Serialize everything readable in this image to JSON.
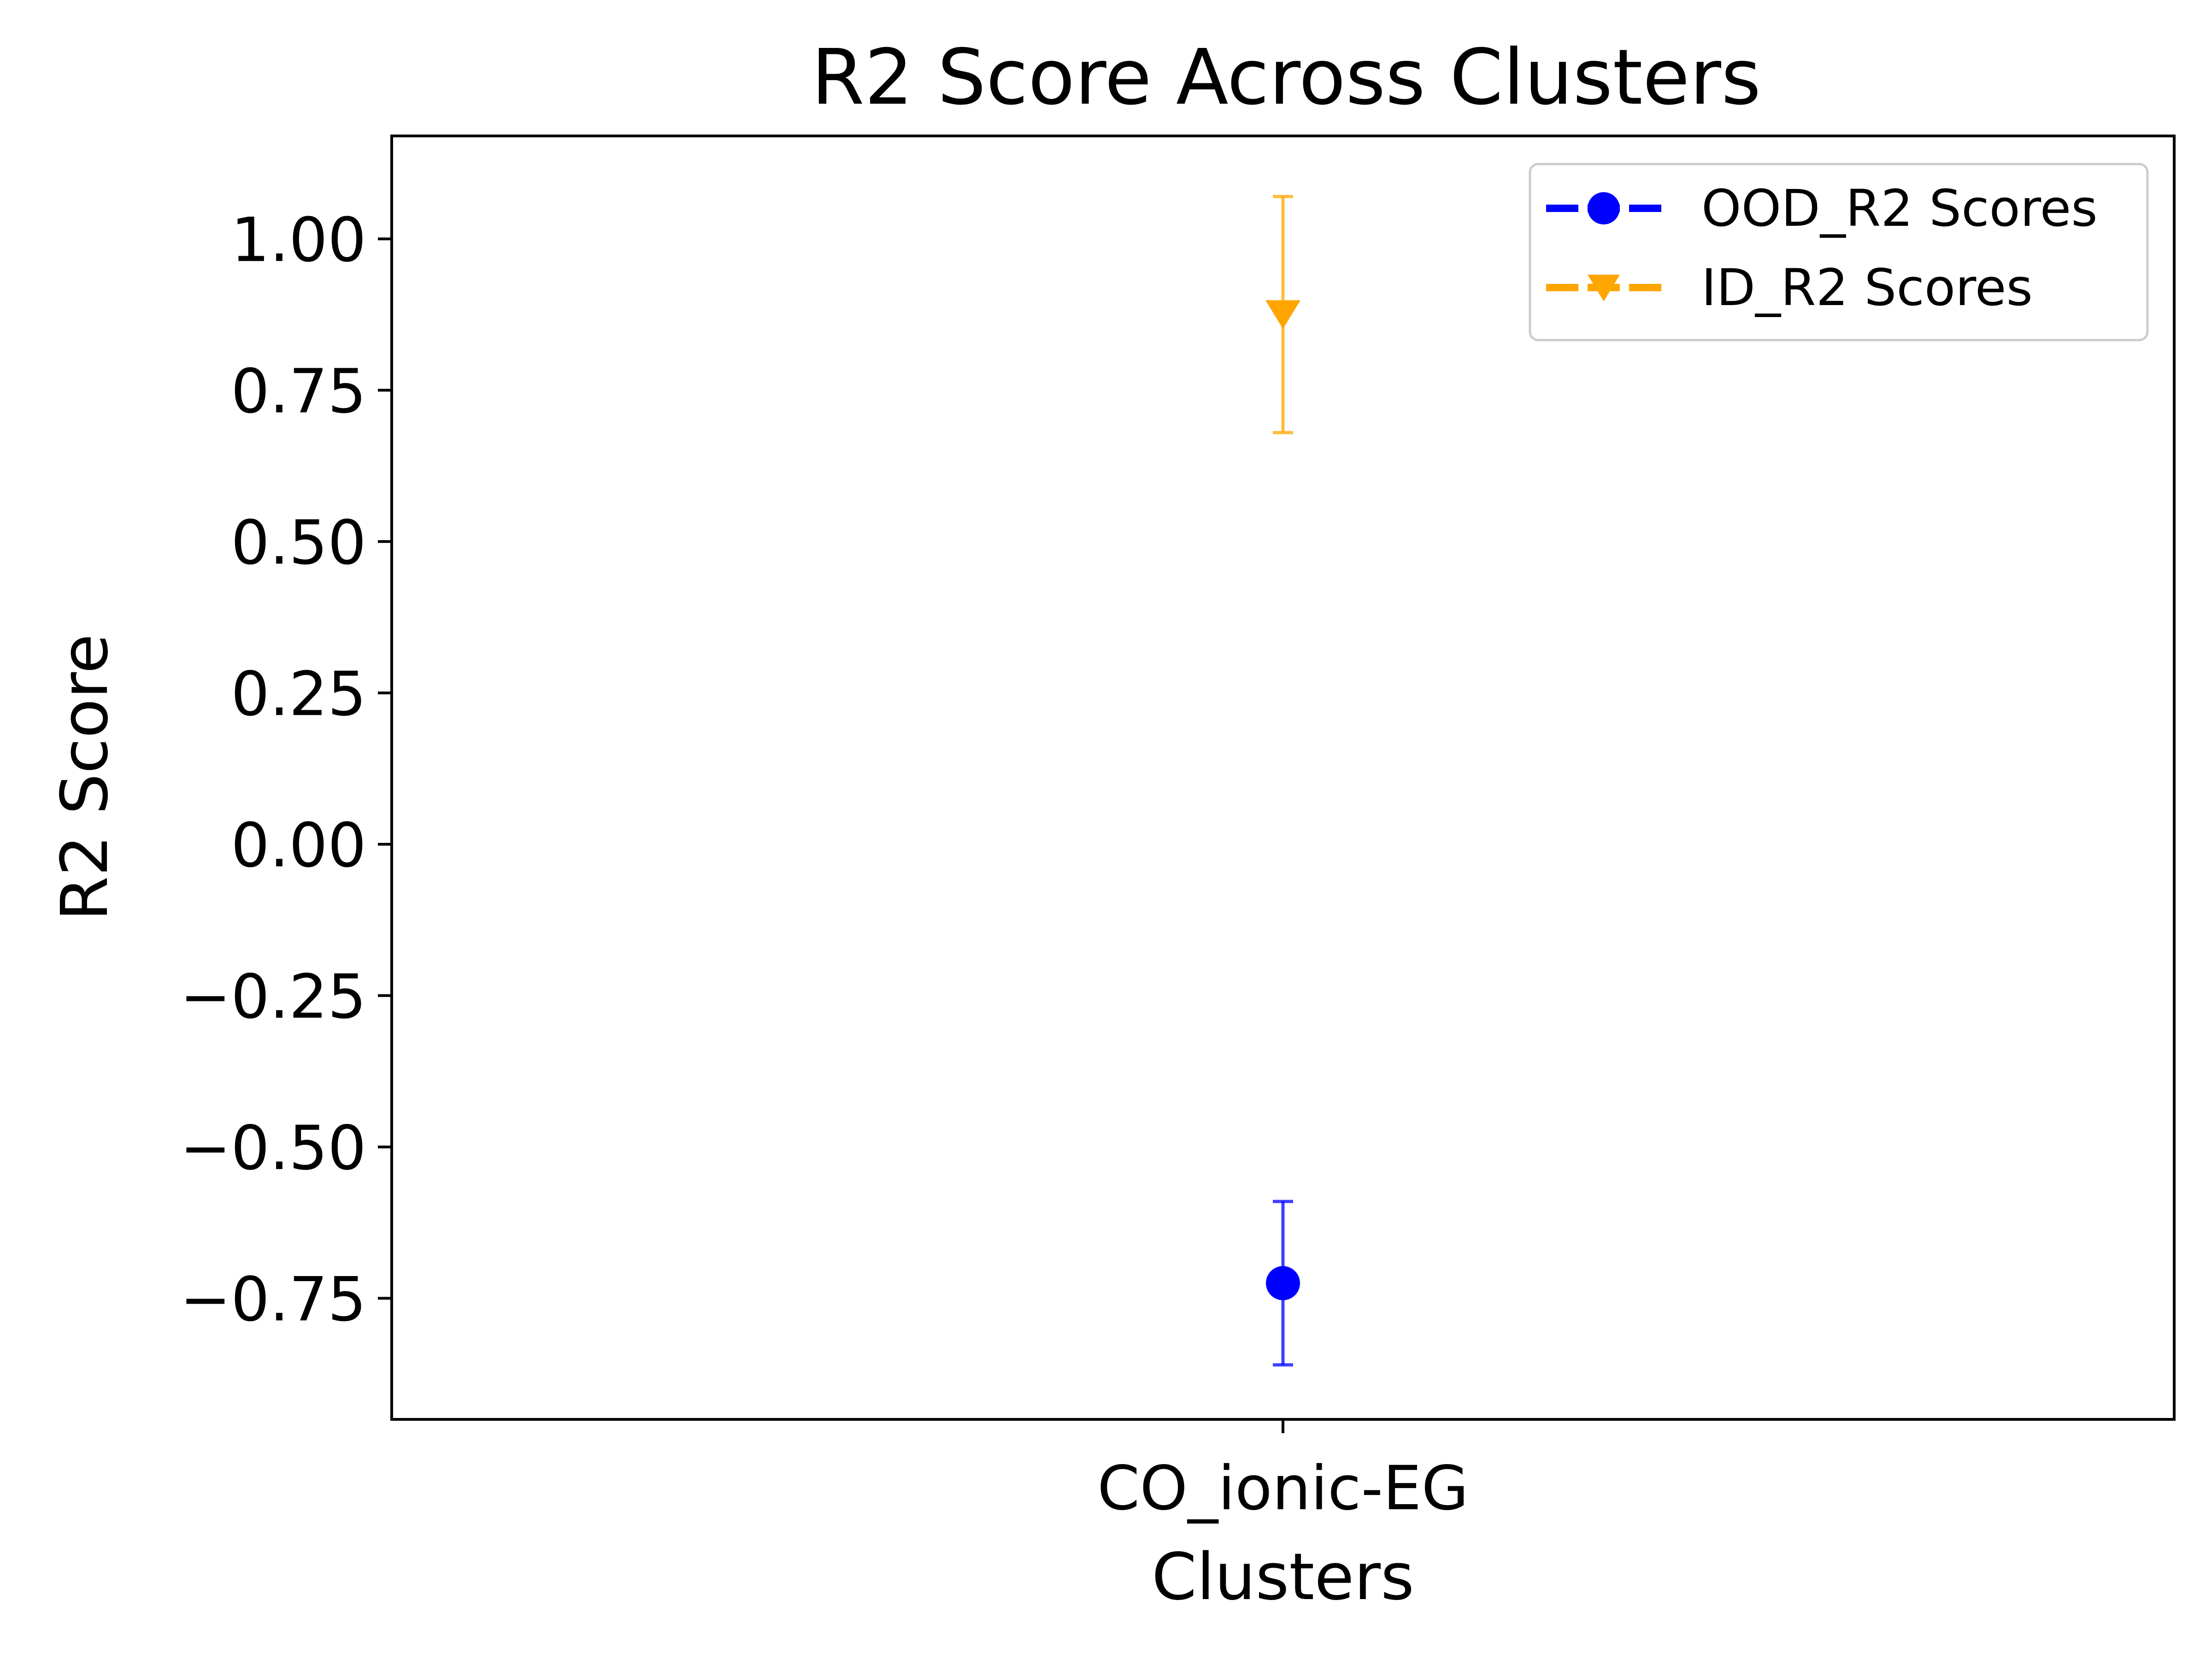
{
  "chart_data": {
    "type": "scatter",
    "title": "R2 Score Across Clusters",
    "xlabel": "Clusters",
    "ylabel": "R2 Score",
    "categories": [
      "CO_ionic-EG"
    ],
    "ylim": [
      -0.95,
      1.17
    ],
    "yticks": [
      -0.75,
      -0.5,
      -0.25,
      0.0,
      0.25,
      0.5,
      0.75,
      1.0
    ],
    "ytick_labels": [
      "−0.75",
      "−0.50",
      "−0.25",
      "0.00",
      "0.25",
      "0.50",
      "0.75",
      "1.00"
    ],
    "grid": false,
    "legend_position": "top-right",
    "series": [
      {
        "name": "OOD_R2 Scores",
        "color": "#0000ff",
        "marker": "circle",
        "values": [
          -0.725
        ],
        "error": [
          0.135
        ]
      },
      {
        "name": "ID_R2 Scores",
        "color": "#ffa500",
        "marker": "triangle-down",
        "values": [
          0.875
        ],
        "error": [
          0.195
        ]
      }
    ]
  }
}
